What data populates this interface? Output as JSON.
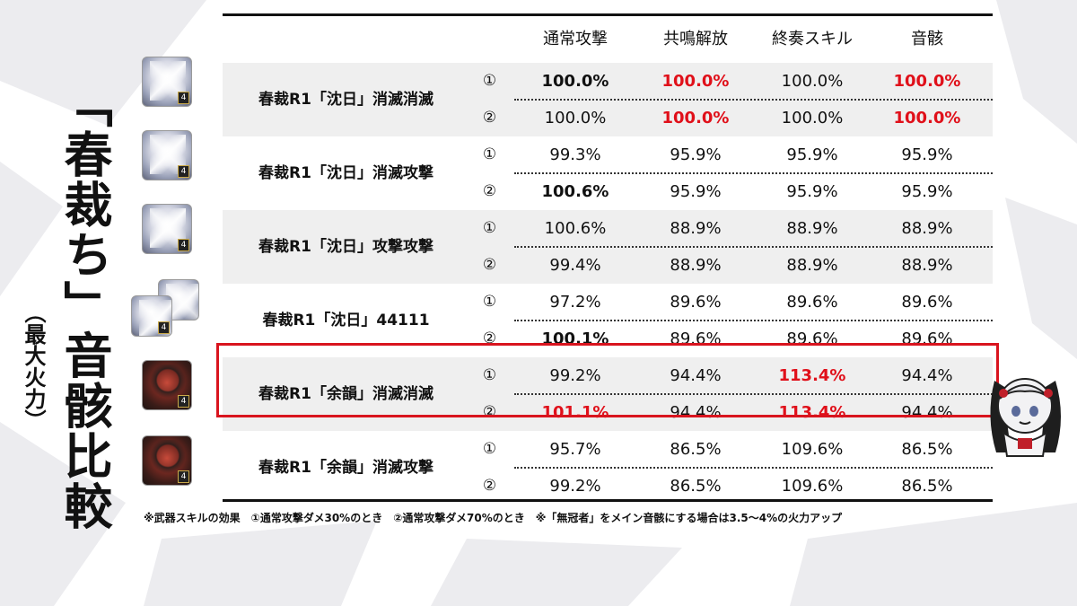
{
  "title": "「春裁ち」音骸比較",
  "subtitle": "（最大火力）",
  "columns": [
    "通常攻撃",
    "共鳴解放",
    "終奏スキル",
    "音骸"
  ],
  "rows": [
    {
      "name": "春裁R1「沈日」消滅消滅",
      "icon": "white-ghost-echo-icon",
      "sub": [
        {
          "label": "①",
          "values": [
            "100.0%",
            "100.0%",
            "100.0%",
            "100.0%"
          ],
          "styles": [
            "b",
            "r",
            "",
            "r"
          ]
        },
        {
          "label": "②",
          "values": [
            "100.0%",
            "100.0%",
            "100.0%",
            "100.0%"
          ],
          "styles": [
            "",
            "r",
            "",
            "r"
          ]
        }
      ]
    },
    {
      "name": "春裁R1「沈日」消滅攻撃",
      "icon": "white-ghost-echo-icon",
      "sub": [
        {
          "label": "①",
          "values": [
            "99.3%",
            "95.9%",
            "95.9%",
            "95.9%"
          ],
          "styles": [
            "",
            "",
            "",
            ""
          ]
        },
        {
          "label": "②",
          "values": [
            "100.6%",
            "95.9%",
            "95.9%",
            "95.9%"
          ],
          "styles": [
            "b",
            "",
            "",
            ""
          ]
        }
      ]
    },
    {
      "name": "春裁R1「沈日」攻撃攻撃",
      "icon": "white-ghost-echo-icon",
      "sub": [
        {
          "label": "①",
          "values": [
            "100.6%",
            "88.9%",
            "88.9%",
            "88.9%"
          ],
          "styles": [
            "",
            "",
            "",
            ""
          ]
        },
        {
          "label": "②",
          "values": [
            "99.4%",
            "88.9%",
            "88.9%",
            "88.9%"
          ],
          "styles": [
            "",
            "",
            "",
            ""
          ]
        }
      ]
    },
    {
      "name": "春裁R1「沈日」44111",
      "icon": "white-ghost-echo-icon",
      "sub": [
        {
          "label": "①",
          "values": [
            "97.2%",
            "89.6%",
            "89.6%",
            "89.6%"
          ],
          "styles": [
            "",
            "",
            "",
            ""
          ]
        },
        {
          "label": "②",
          "values": [
            "100.1%",
            "89.6%",
            "89.6%",
            "89.6%"
          ],
          "styles": [
            "b",
            "",
            "",
            ""
          ]
        }
      ]
    },
    {
      "name": "春裁R1「余韻」消滅消滅",
      "icon": "red-ghost-echo-icon",
      "sub": [
        {
          "label": "①",
          "values": [
            "99.2%",
            "94.4%",
            "113.4%",
            "94.4%"
          ],
          "styles": [
            "",
            "",
            "r",
            ""
          ]
        },
        {
          "label": "②",
          "values": [
            "101.1%",
            "94.4%",
            "113.4%",
            "94.4%"
          ],
          "styles": [
            "r",
            "",
            "r",
            ""
          ]
        }
      ]
    },
    {
      "name": "春裁R1「余韻」消滅攻撃",
      "icon": "red-ghost-echo-icon",
      "sub": [
        {
          "label": "①",
          "values": [
            "95.7%",
            "86.5%",
            "109.6%",
            "86.5%"
          ],
          "styles": [
            "",
            "",
            "",
            ""
          ]
        },
        {
          "label": "②",
          "values": [
            "99.2%",
            "86.5%",
            "109.6%",
            "86.5%"
          ],
          "styles": [
            "",
            "",
            "",
            ""
          ]
        }
      ]
    }
  ],
  "icon_badge": "4",
  "footnote": "※武器スキルの効果　①通常攻撃ダメ30%のとき　②通常攻撃ダメ70%のとき　※「無冠者」をメイン音骸にする場合は3.5～4%の火力アップ",
  "colors": {
    "highlight": "#d9141e",
    "emphasis_red": "#e0101a",
    "row_shade": "#efefef"
  }
}
